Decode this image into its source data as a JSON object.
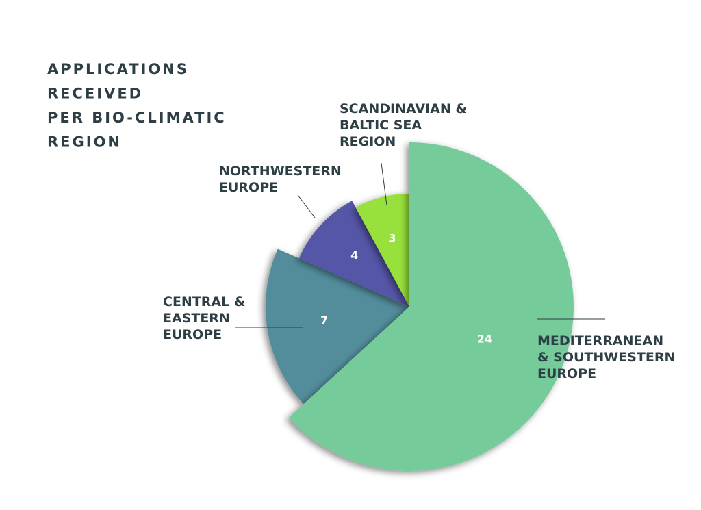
{
  "chart_data": {
    "type": "pie",
    "title": "APPLICATIONS RECEIVED PER BIO-CLIMATIC REGION",
    "categories": [
      "MEDITERRANEAN & SOUTHWESTERN EUROPE",
      "CENTRAL & EASTERN EUROPE",
      "NORTHWESTERN EUROPE",
      "SCANDINAVIAN & BALTIC SEA REGION"
    ],
    "values": [
      24,
      7,
      4,
      3
    ],
    "colors": [
      "#76cb9b",
      "#528d9c",
      "#5457a8",
      "#98e03a"
    ]
  }
}
